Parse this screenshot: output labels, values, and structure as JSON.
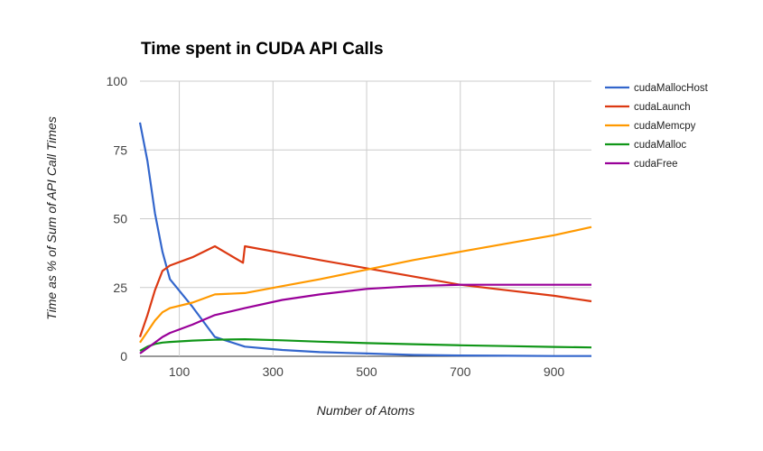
{
  "chart_data": {
    "type": "line",
    "title": "Time spent in CUDA API Calls",
    "xlabel": "Number of Atoms",
    "ylabel": "Time as % of Sum of API Call Times",
    "xlim": [
      16,
      980
    ],
    "ylim": [
      0,
      100
    ],
    "x_ticks": [
      100,
      300,
      500,
      700,
      900
    ],
    "y_ticks": [
      0,
      25,
      50,
      75,
      100
    ],
    "grid": true,
    "legend_position": "right",
    "series": [
      {
        "name": "cudaMallocHost",
        "color": "#3366cc",
        "points": [
          [
            16,
            85
          ],
          [
            32,
            71
          ],
          [
            48,
            52
          ],
          [
            64,
            38
          ],
          [
            80,
            28
          ],
          [
            128,
            18
          ],
          [
            176,
            7
          ],
          [
            240,
            3.5
          ],
          [
            320,
            2.3
          ],
          [
            400,
            1.5
          ],
          [
            500,
            1
          ],
          [
            600,
            0.5
          ],
          [
            700,
            0.3
          ],
          [
            800,
            0.2
          ],
          [
            900,
            0.1
          ],
          [
            980,
            0.1
          ]
        ]
      },
      {
        "name": "cudaLaunch",
        "color": "#dc3912",
        "points": [
          [
            16,
            7
          ],
          [
            32,
            15
          ],
          [
            48,
            24
          ],
          [
            64,
            31
          ],
          [
            80,
            33
          ],
          [
            128,
            36
          ],
          [
            176,
            40
          ],
          [
            236,
            34
          ],
          [
            240,
            40
          ],
          [
            320,
            37.5
          ],
          [
            400,
            35
          ],
          [
            500,
            32
          ],
          [
            600,
            29
          ],
          [
            700,
            26
          ],
          [
            800,
            24
          ],
          [
            900,
            22
          ],
          [
            980,
            20
          ]
        ]
      },
      {
        "name": "cudaMemcpy",
        "color": "#ff9900",
        "points": [
          [
            16,
            5
          ],
          [
            32,
            9
          ],
          [
            48,
            13
          ],
          [
            64,
            16
          ],
          [
            80,
            17.5
          ],
          [
            128,
            19.5
          ],
          [
            176,
            22.5
          ],
          [
            240,
            23
          ],
          [
            320,
            25.5
          ],
          [
            400,
            28
          ],
          [
            500,
            31.5
          ],
          [
            600,
            35
          ],
          [
            700,
            38
          ],
          [
            800,
            41
          ],
          [
            900,
            44
          ],
          [
            980,
            47
          ]
        ]
      },
      {
        "name": "cudaMalloc",
        "color": "#109618",
        "points": [
          [
            16,
            2
          ],
          [
            32,
            3.5
          ],
          [
            48,
            4.5
          ],
          [
            64,
            5
          ],
          [
            80,
            5.2
          ],
          [
            128,
            5.7
          ],
          [
            176,
            6
          ],
          [
            240,
            6.2
          ],
          [
            320,
            5.8
          ],
          [
            400,
            5.3
          ],
          [
            500,
            4.8
          ],
          [
            600,
            4.4
          ],
          [
            700,
            4
          ],
          [
            800,
            3.7
          ],
          [
            900,
            3.4
          ],
          [
            980,
            3.2
          ]
        ]
      },
      {
        "name": "cudaFree",
        "color": "#990099",
        "points": [
          [
            16,
            1
          ],
          [
            32,
            3
          ],
          [
            48,
            5
          ],
          [
            64,
            7
          ],
          [
            80,
            8.5
          ],
          [
            128,
            11.5
          ],
          [
            176,
            15
          ],
          [
            240,
            17.5
          ],
          [
            320,
            20.5
          ],
          [
            400,
            22.5
          ],
          [
            500,
            24.5
          ],
          [
            600,
            25.5
          ],
          [
            700,
            26
          ],
          [
            800,
            26
          ],
          [
            900,
            26
          ],
          [
            980,
            26
          ]
        ]
      }
    ]
  }
}
